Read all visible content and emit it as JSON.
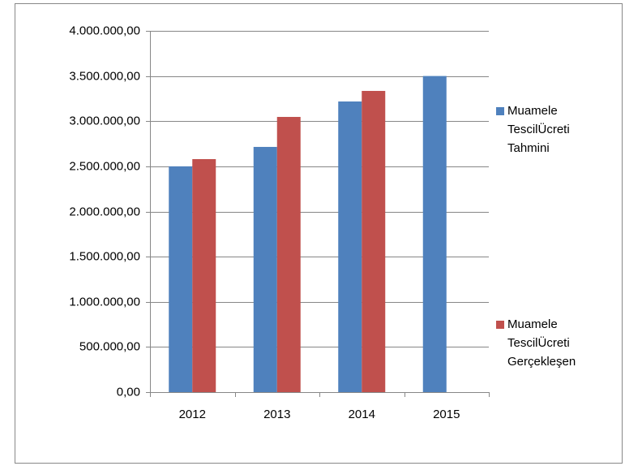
{
  "chart_data": {
    "type": "bar",
    "categories": [
      "2012",
      "2013",
      "2014",
      "2015"
    ],
    "series": [
      {
        "name": "Muamele TescilÜcreti Tahmini",
        "color": "#4f81bd",
        "values": [
          2500000,
          2715000,
          3218000,
          3500000
        ]
      },
      {
        "name": "Muamele TescilÜcreti Gerçekleşen",
        "color": "#c0504d",
        "values": [
          2580000,
          3047000,
          3335000,
          null
        ]
      }
    ],
    "ylim": [
      0,
      4000000
    ],
    "yticks": [
      {
        "value": 0,
        "label": "0,00"
      },
      {
        "value": 500000,
        "label": "500.000,00"
      },
      {
        "value": 1000000,
        "label": "1.000.000,00"
      },
      {
        "value": 1500000,
        "label": "1.500.000,00"
      },
      {
        "value": 2000000,
        "label": "2.000.000,00"
      },
      {
        "value": 2500000,
        "label": "2.500.000,00"
      },
      {
        "value": 3000000,
        "label": "3.000.000,00"
      },
      {
        "value": 3500000,
        "label": "3.500.000,00"
      },
      {
        "value": 4000000,
        "label": "4.000.000,00"
      }
    ],
    "grid": true,
    "legend": "right"
  }
}
